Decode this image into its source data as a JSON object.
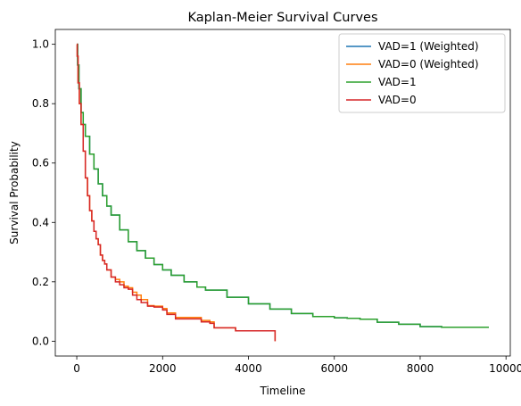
{
  "chart_data": {
    "type": "line",
    "title": "Kaplan-Meier Survival Curves",
    "xlabel": "Timeline",
    "ylabel": "Survival Probability",
    "xlim": [
      -500,
      10100
    ],
    "ylim": [
      -0.05,
      1.05
    ],
    "xticks": [
      0,
      2000,
      4000,
      6000,
      8000,
      10000
    ],
    "yticks": [
      0.0,
      0.2,
      0.4,
      0.6,
      0.8,
      1.0
    ],
    "xtick_labels": [
      "0",
      "2000",
      "4000",
      "6000",
      "8000",
      "10000"
    ],
    "ytick_labels": [
      "0.0",
      "0.2",
      "0.4",
      "0.6",
      "0.8",
      "1.0"
    ],
    "grid": false,
    "legend_position": "top-right",
    "series": [
      {
        "name": "VAD=1 (Weighted)",
        "color": "#1f77b4",
        "step": true,
        "x": [
          0,
          20,
          50,
          100,
          150,
          200,
          300,
          400,
          500,
          600,
          700,
          800,
          1000,
          1200,
          1400,
          1600,
          1800,
          2000,
          2200,
          2500,
          2800,
          3000,
          3500,
          4000,
          4500,
          5000,
          5500,
          6000,
          6300,
          6600,
          7000,
          7500,
          8000,
          8500,
          9000,
          9600
        ],
        "y": [
          1.0,
          0.93,
          0.85,
          0.77,
          0.73,
          0.69,
          0.63,
          0.58,
          0.53,
          0.49,
          0.455,
          0.425,
          0.375,
          0.335,
          0.305,
          0.28,
          0.258,
          0.24,
          0.222,
          0.2,
          0.182,
          0.172,
          0.148,
          0.126,
          0.108,
          0.093,
          0.083,
          0.079,
          0.077,
          0.074,
          0.064,
          0.057,
          0.049,
          0.047,
          0.047,
          0.047
        ]
      },
      {
        "name": "VAD=0 (Weighted)",
        "color": "#ff7f0e",
        "step": true,
        "x": [
          0,
          10,
          30,
          60,
          100,
          150,
          200,
          250,
          300,
          350,
          400,
          450,
          500,
          550,
          600,
          650,
          700,
          800,
          900,
          1000,
          1100,
          1200,
          1300,
          1400,
          1500,
          1650,
          1800,
          2000,
          2100,
          2300,
          2800,
          2900,
          3100,
          3200,
          3300,
          3700,
          4000,
          4500,
          4600,
          4620
        ],
        "y": [
          1.0,
          0.96,
          0.87,
          0.8,
          0.73,
          0.64,
          0.55,
          0.49,
          0.44,
          0.405,
          0.37,
          0.345,
          0.325,
          0.29,
          0.272,
          0.26,
          0.24,
          0.216,
          0.208,
          0.2,
          0.185,
          0.18,
          0.165,
          0.155,
          0.14,
          0.12,
          0.118,
          0.11,
          0.095,
          0.08,
          0.08,
          0.07,
          0.065,
          0.045,
          0.045,
          0.035,
          0.035,
          0.035,
          0.035,
          0.0
        ]
      },
      {
        "name": "VAD=1",
        "color": "#2ca02c",
        "step": true,
        "x": [
          0,
          20,
          50,
          100,
          150,
          200,
          300,
          400,
          500,
          600,
          700,
          800,
          1000,
          1200,
          1400,
          1600,
          1800,
          2000,
          2200,
          2500,
          2800,
          3000,
          3500,
          4000,
          4500,
          5000,
          5500,
          6000,
          6300,
          6600,
          7000,
          7500,
          8000,
          8500,
          9000,
          9600
        ],
        "y": [
          1.0,
          0.93,
          0.85,
          0.77,
          0.73,
          0.69,
          0.63,
          0.58,
          0.53,
          0.49,
          0.455,
          0.425,
          0.375,
          0.335,
          0.305,
          0.28,
          0.258,
          0.24,
          0.222,
          0.2,
          0.182,
          0.172,
          0.148,
          0.126,
          0.108,
          0.093,
          0.083,
          0.079,
          0.077,
          0.074,
          0.064,
          0.057,
          0.049,
          0.047,
          0.047,
          0.047
        ]
      },
      {
        "name": "VAD=0",
        "color": "#d62728",
        "step": true,
        "x": [
          0,
          10,
          30,
          60,
          100,
          150,
          200,
          250,
          300,
          350,
          400,
          450,
          500,
          550,
          600,
          650,
          700,
          800,
          900,
          1000,
          1100,
          1200,
          1300,
          1400,
          1500,
          1650,
          1800,
          2000,
          2100,
          2300,
          2800,
          2900,
          3100,
          3200,
          3300,
          3700,
          4000,
          4500,
          4600,
          4620
        ],
        "y": [
          1.0,
          0.96,
          0.87,
          0.8,
          0.73,
          0.64,
          0.55,
          0.49,
          0.44,
          0.405,
          0.37,
          0.345,
          0.325,
          0.29,
          0.272,
          0.26,
          0.24,
          0.216,
          0.2,
          0.19,
          0.18,
          0.175,
          0.155,
          0.14,
          0.13,
          0.118,
          0.115,
          0.105,
          0.09,
          0.075,
          0.075,
          0.065,
          0.06,
          0.045,
          0.045,
          0.035,
          0.035,
          0.035,
          0.035,
          0.0
        ]
      }
    ]
  }
}
